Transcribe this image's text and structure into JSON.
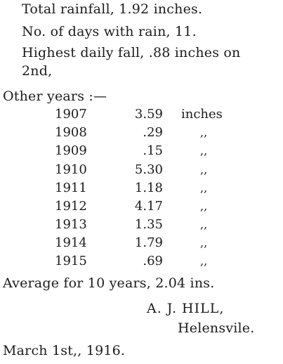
{
  "summary": {
    "total_rainfall": "Total rainfall, 1.92 inches.",
    "days_with_rain": "No. of days with rain, 11.",
    "highest_fall_line1": "Highest daily fall, .88 inches on",
    "highest_fall_line2": "2nd,"
  },
  "other_years_heading": "Other years :—",
  "records": [
    {
      "year": "1907",
      "amount": "3.59",
      "unit": "inches"
    },
    {
      "year": "1908",
      "amount": ".29",
      "unit": ",,"
    },
    {
      "year": "1909",
      "amount": ".15",
      "unit": ",,"
    },
    {
      "year": "1910",
      "amount": "5.30",
      "unit": ",,"
    },
    {
      "year": "1911",
      "amount": "1.18",
      "unit": ",,"
    },
    {
      "year": "1912",
      "amount": "4.17",
      "unit": ",,"
    },
    {
      "year": "1913",
      "amount": "1.35",
      "unit": ",,"
    },
    {
      "year": "1914",
      "amount": "1.79",
      "unit": ",,"
    },
    {
      "year": "1915",
      "amount": ".69",
      "unit": ",,"
    }
  ],
  "average": "Average for 10 years, 2.04 ins.",
  "signature": {
    "name": "A. J. HILL,",
    "place": "Helensvile."
  },
  "date": "March 1st,, 1916."
}
